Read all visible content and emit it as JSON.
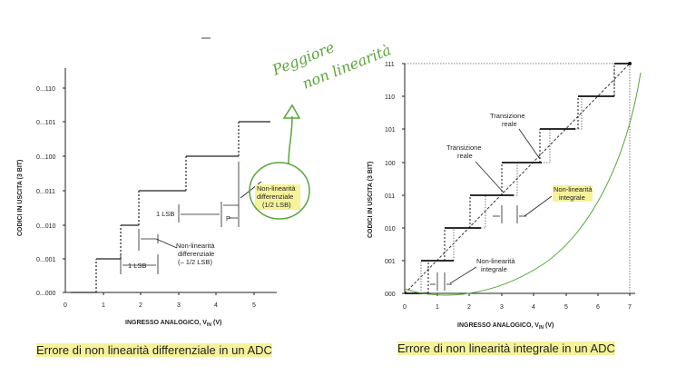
{
  "captions": {
    "left": "Errore di non linearità differenziale in un ADC",
    "right": "Errore di non linearità integrale in un ADC"
  },
  "left_figure": {
    "ylabel": "CODICI IN USCITA (3 BIT)",
    "xlabel": "INGRESSO ANALOGICO, V",
    "xlabel_sub": "IN",
    "xlabel_unit": "(V)",
    "yticks": [
      "0...000",
      "0...001",
      "0...010",
      "0...011",
      "0...100",
      "0...101",
      "0...110"
    ],
    "xticks": [
      "0",
      "1",
      "2",
      "3",
      "4",
      "5"
    ],
    "annotations": {
      "lsb_bottom": "1 LSB",
      "lsb_mid": "1 LSB",
      "nl_diff_1": "Non-linearità",
      "nl_diff_2": "differenziale",
      "nl_diff_3": "(– 1/2 LSB)",
      "nl_diff_pos_1": "Non-linearità",
      "nl_diff_pos_2": "differenziale",
      "nl_diff_pos_3": "(1/2 LSB)"
    }
  },
  "right_figure": {
    "ylabel": "CODICI IN USCITA (3 BIT)",
    "xlabel": "INGRESSO ANALOGICO, V",
    "xlabel_sub": "IN",
    "xlabel_unit": "(V)",
    "yticks": [
      "000",
      "001",
      "010",
      "011",
      "100",
      "101",
      "110",
      "111"
    ],
    "xticks": [
      "0",
      "1",
      "2",
      "3",
      "4",
      "5",
      "6",
      "7"
    ],
    "annotations": {
      "trans_a_1": "Transizione",
      "trans_a_2": "reale",
      "trans_b_1": "Transizione",
      "trans_b_2": "reale",
      "nli_right_1": "Non-linearità",
      "nli_right_2": "integrale",
      "nli_left_1": "Non-linearità",
      "nli_left_2": "integrale"
    }
  },
  "handwriting": {
    "line1": "Peggiore",
    "line2": "non linearità"
  },
  "colors": {
    "ink": "#222222",
    "green": "#5aa53a",
    "highlight": "#f5f29a"
  }
}
